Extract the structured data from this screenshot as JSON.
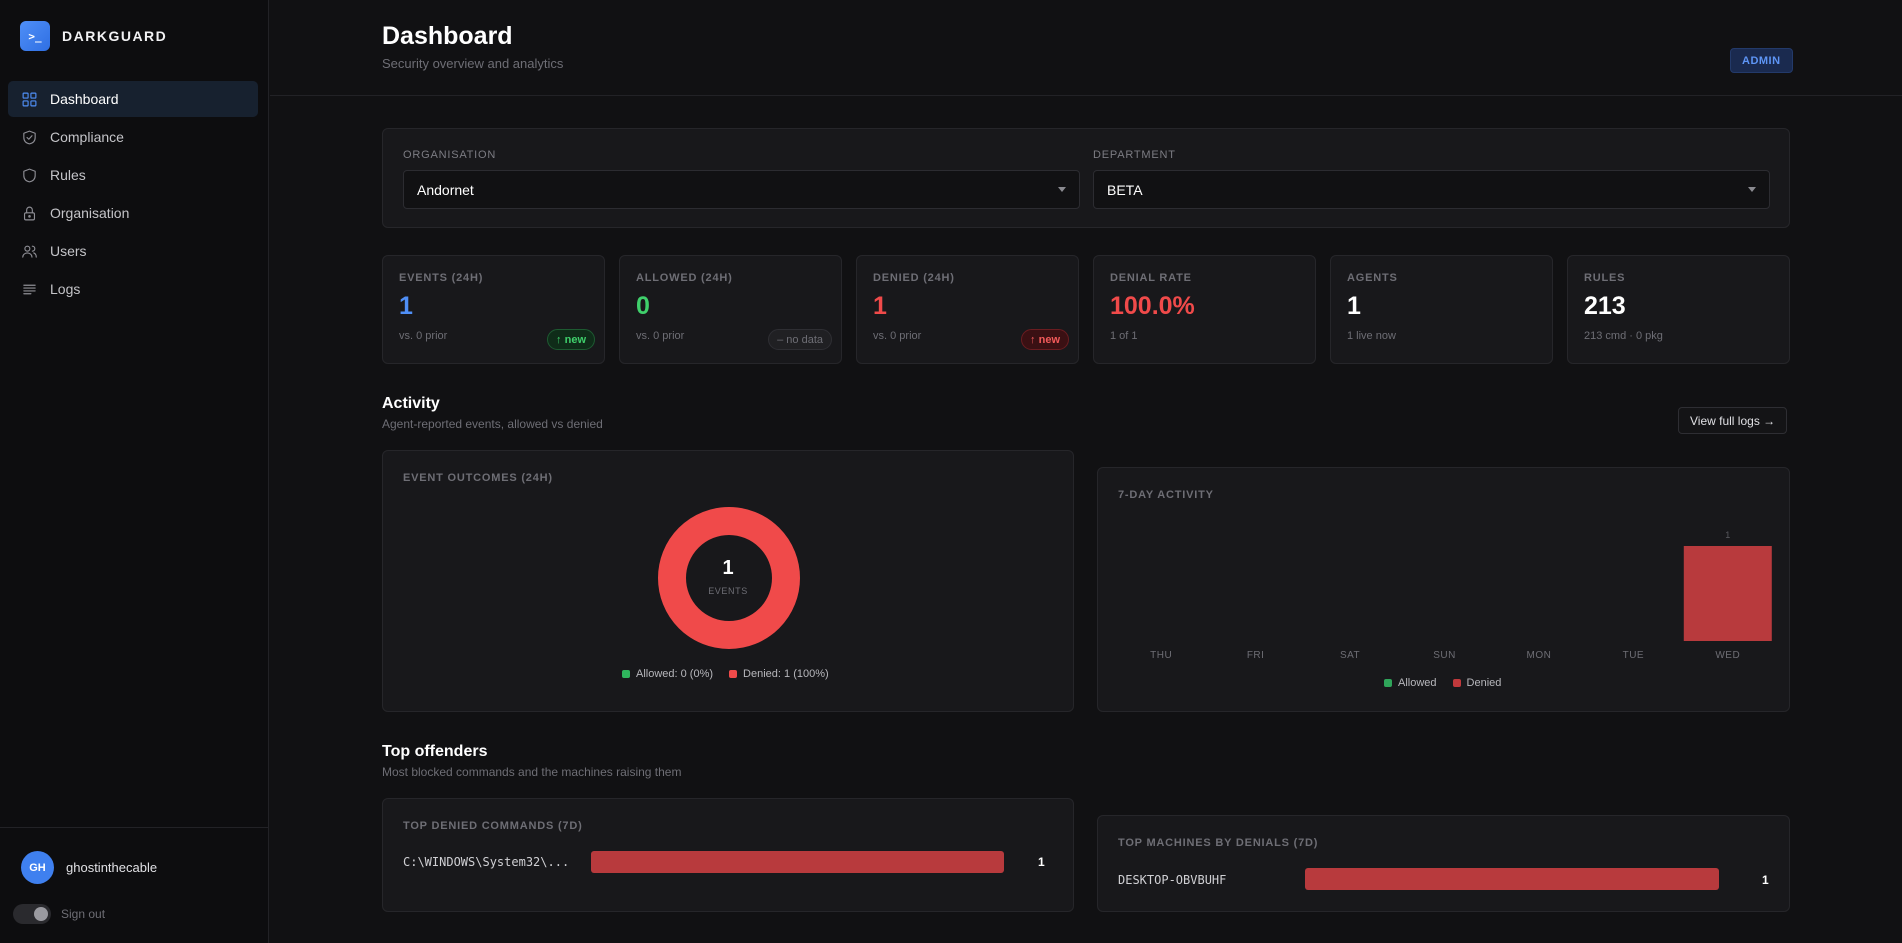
{
  "brand": {
    "logo_text": ">_",
    "name": "DARKGUARD"
  },
  "nav": [
    {
      "label": "Dashboard",
      "icon": "grid-icon",
      "active": true
    },
    {
      "label": "Compliance",
      "icon": "shield-check-icon"
    },
    {
      "label": "Rules",
      "icon": "shield-icon"
    },
    {
      "label": "Organisation",
      "icon": "lock-icon"
    },
    {
      "label": "Users",
      "icon": "users-icon"
    },
    {
      "label": "Logs",
      "icon": "list-icon"
    }
  ],
  "user": {
    "initials": "GH",
    "name": "ghostinthecable",
    "signout_label": "Sign out"
  },
  "header": {
    "title": "Dashboard",
    "subtitle": "Security overview and analytics",
    "role_badge": "ADMIN"
  },
  "filters": {
    "organisation": {
      "label": "ORGANISATION",
      "value": "Andornet"
    },
    "department": {
      "label": "DEPARTMENT",
      "value": "BETA"
    }
  },
  "stats": [
    {
      "label": "EVENTS (24H)",
      "value": "1",
      "color": "#4f8ff7",
      "sub": "vs. 0 prior",
      "badge": "↑ new",
      "badge_type": "green"
    },
    {
      "label": "ALLOWED (24H)",
      "value": "0",
      "color": "#3fcf6b",
      "sub": "vs. 0 prior",
      "badge": "– no data",
      "badge_type": "gray"
    },
    {
      "label": "DENIED (24H)",
      "value": "1",
      "color": "#f04a4a",
      "sub": "vs. 0 prior",
      "badge": "↑ new",
      "badge_type": "red"
    },
    {
      "label": "DENIAL RATE",
      "value": "100.0%",
      "color": "#f04a4a",
      "sub": "1 of 1"
    },
    {
      "label": "AGENTS",
      "value": "1",
      "color": "#ffffff",
      "sub": "1 live now"
    },
    {
      "label": "RULES",
      "value": "213",
      "color": "#ffffff",
      "sub": "213 cmd · 0 pkg"
    }
  ],
  "activity": {
    "title": "Activity",
    "subtitle": "Agent-reported events, allowed vs denied",
    "view_logs": "View full logs →",
    "outcomes": {
      "title": "EVENT OUTCOMES (24H)",
      "total": "1",
      "total_label": "EVENTS",
      "allowed_legend": "Allowed: 0  (0%)",
      "denied_legend": "Denied: 1  (100%)"
    },
    "weekly": {
      "title": "7-DAY ACTIVITY",
      "allowed_legend": "Allowed",
      "denied_legend": "Denied"
    }
  },
  "offenders": {
    "title": "Top offenders",
    "subtitle": "Most blocked commands and the machines raising them",
    "commands": {
      "title": "TOP DENIED COMMANDS (7D)",
      "rows": [
        {
          "name": "C:\\WINDOWS\\System32\\...",
          "count": "1"
        }
      ]
    },
    "machines": {
      "title": "TOP MACHINES BY DENIALS (7D)",
      "rows": [
        {
          "name": "DESKTOP-OBVBUHF",
          "count": "1"
        }
      ]
    }
  },
  "colors": {
    "allowed": "#2fa55a",
    "denied": "#f04a4a",
    "accent": "#4f8ff7"
  },
  "chart_data": [
    {
      "type": "pie",
      "title": "EVENT OUTCOMES (24H)",
      "categories": [
        "Allowed",
        "Denied"
      ],
      "values": [
        0,
        1
      ]
    },
    {
      "type": "bar",
      "title": "7-DAY ACTIVITY",
      "categories": [
        "THU",
        "FRI",
        "SAT",
        "SUN",
        "MON",
        "TUE",
        "WED"
      ],
      "series": [
        {
          "name": "Allowed",
          "values": [
            0,
            0,
            0,
            0,
            0,
            0,
            0
          ]
        },
        {
          "name": "Denied",
          "values": [
            0,
            0,
            0,
            0,
            0,
            0,
            1
          ]
        }
      ],
      "data_labels": [
        "",
        "",
        "",
        "",
        "",
        "",
        "1"
      ],
      "legend": "bottom"
    }
  ]
}
